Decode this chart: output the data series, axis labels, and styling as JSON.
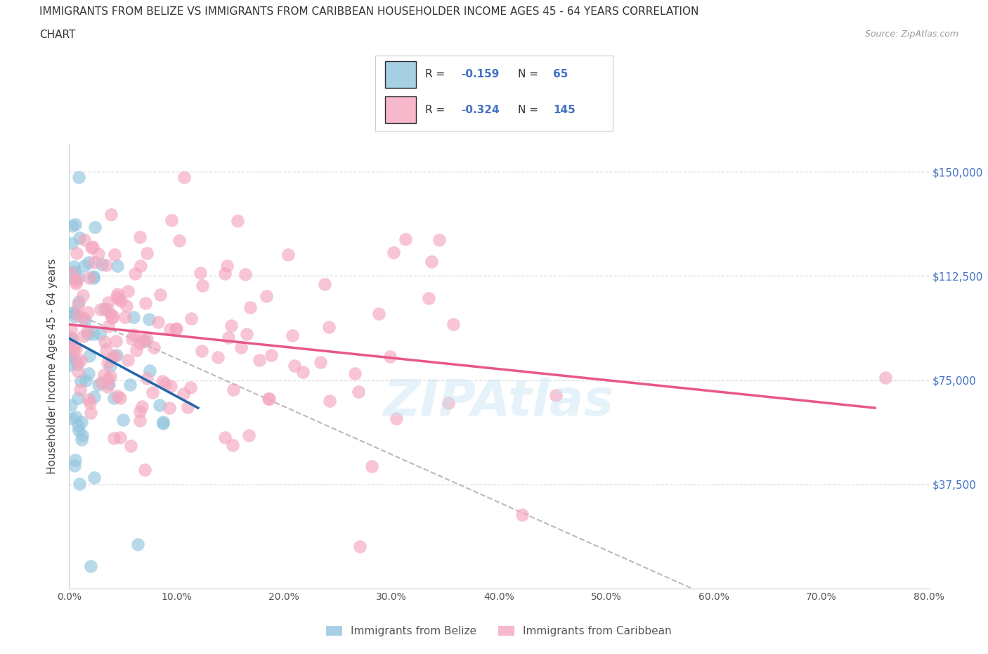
{
  "title_line1": "IMMIGRANTS FROM BELIZE VS IMMIGRANTS FROM CARIBBEAN HOUSEHOLDER INCOME AGES 45 - 64 YEARS CORRELATION",
  "title_line2": "CHART",
  "source_text": "Source: ZipAtlas.com",
  "ylabel": "Householder Income Ages 45 - 64 years",
  "xlim": [
    0.0,
    0.8
  ],
  "ylim": [
    0,
    160000
  ],
  "yticks": [
    0,
    37500,
    75000,
    112500,
    150000
  ],
  "xtick_labels": [
    "0.0%",
    "10.0%",
    "20.0%",
    "30.0%",
    "40.0%",
    "50.0%",
    "60.0%",
    "70.0%",
    "80.0%"
  ],
  "ytick_right_labels": [
    "",
    "$37,500",
    "$75,000",
    "$112,500",
    "$150,000"
  ],
  "belize_color": "#92c5de",
  "caribbean_color": "#f4a6be",
  "belize_line_color": "#2166ac",
  "caribbean_line_color": "#e8578a",
  "dash_line_color": "#bbbbbb",
  "R_belize": -0.159,
  "N_belize": 65,
  "R_caribbean": -0.324,
  "N_caribbean": 145,
  "legend_label_belize": "Immigrants from Belize",
  "legend_label_caribbean": "Immigrants from Caribbean",
  "watermark_text": "ZIPAtlas",
  "title_fontsize": 11,
  "axis_label_fontsize": 11,
  "tick_fontsize": 10,
  "right_tick_color": "#4472c4",
  "grid_color": "#dddddd",
  "belize_trend_x0": 0.0,
  "belize_trend_y0": 90000,
  "belize_trend_x1": 0.12,
  "belize_trend_y1": 65000,
  "caribbean_trend_x0": 0.0,
  "caribbean_trend_y0": 95000,
  "caribbean_trend_x1": 0.75,
  "caribbean_trend_y1": 65000,
  "dash_trend_x0": 0.0,
  "dash_trend_y0": 100000,
  "dash_trend_x1": 0.58,
  "dash_trend_y1": 0
}
